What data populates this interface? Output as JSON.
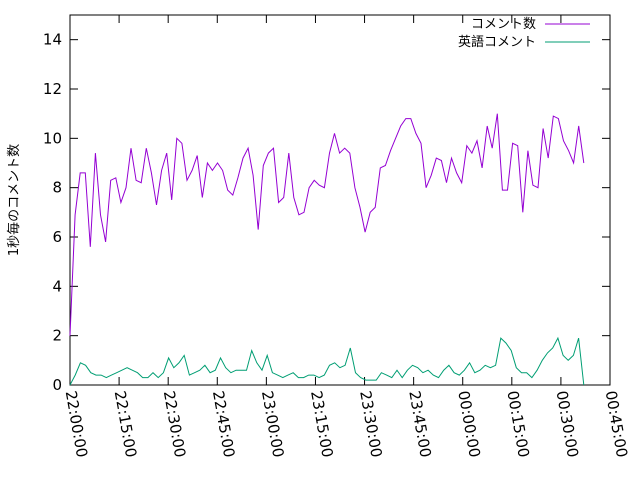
{
  "chart_data": {
    "type": "line",
    "title": "",
    "xlabel": "",
    "ylabel": "1秒毎のコメント数",
    "xlim": [
      "22:00:00",
      "00:45:00"
    ],
    "ylim": [
      0,
      15
    ],
    "x_ticks": [
      "22:00:00",
      "22:15:00",
      "22:30:00",
      "22:45:00",
      "23:00:00",
      "23:15:00",
      "23:30:00",
      "23:45:00",
      "00:00:00",
      "00:15:00",
      "00:30:00",
      "00:45:00"
    ],
    "y_ticks": [
      "0",
      "2",
      "4",
      "6",
      "8",
      "10",
      "12",
      "14"
    ],
    "grid": false,
    "legend_position": "top-right",
    "series": [
      {
        "name": "コメント数",
        "color": "#9400d3",
        "values": [
          2.0,
          6.9,
          8.6,
          8.6,
          5.6,
          9.4,
          6.9,
          5.8,
          8.3,
          8.4,
          7.4,
          8.0,
          9.6,
          8.3,
          8.2,
          9.6,
          8.6,
          7.3,
          8.7,
          9.4,
          7.5,
          10.0,
          9.8,
          8.3,
          8.7,
          9.3,
          7.6,
          9.0,
          8.7,
          9.0,
          8.7,
          7.9,
          7.7,
          8.4,
          9.2,
          9.6,
          8.5,
          6.3,
          8.9,
          9.4,
          9.6,
          7.4,
          7.6,
          9.4,
          7.6,
          6.9,
          7.0,
          8.0,
          8.3,
          8.1,
          8.0,
          9.4,
          10.2,
          9.4,
          9.6,
          9.4,
          8.0,
          7.2,
          6.2,
          7.0,
          7.2,
          8.8,
          8.9,
          9.5,
          10.0,
          10.5,
          10.8,
          10.8,
          10.2,
          9.8,
          8.0,
          8.5,
          9.2,
          9.1,
          8.2,
          9.2,
          8.6,
          8.2,
          9.7,
          9.4,
          9.9,
          8.8,
          10.5,
          9.6,
          11.0,
          7.9,
          7.9,
          9.8,
          9.7,
          7.0,
          9.5,
          8.1,
          8.0,
          10.4,
          9.2,
          10.9,
          10.8,
          9.9,
          9.5,
          9.0,
          10.5,
          9.0
        ]
      },
      {
        "name": "英語コメント",
        "color": "#009e73",
        "values": [
          0.0,
          0.4,
          0.9,
          0.8,
          0.5,
          0.4,
          0.4,
          0.3,
          0.4,
          0.5,
          0.6,
          0.7,
          0.6,
          0.5,
          0.3,
          0.3,
          0.5,
          0.3,
          0.5,
          1.1,
          0.7,
          0.9,
          1.2,
          0.4,
          0.5,
          0.6,
          0.8,
          0.5,
          0.6,
          1.1,
          0.7,
          0.5,
          0.6,
          0.6,
          0.6,
          1.4,
          0.9,
          0.6,
          1.2,
          0.5,
          0.4,
          0.3,
          0.4,
          0.5,
          0.3,
          0.3,
          0.4,
          0.4,
          0.3,
          0.4,
          0.8,
          0.9,
          0.7,
          0.8,
          1.5,
          0.5,
          0.3,
          0.2,
          0.2,
          0.2,
          0.5,
          0.4,
          0.3,
          0.6,
          0.3,
          0.6,
          0.8,
          0.7,
          0.5,
          0.6,
          0.4,
          0.3,
          0.6,
          0.8,
          0.5,
          0.4,
          0.6,
          0.9,
          0.5,
          0.6,
          0.8,
          0.7,
          0.8,
          1.9,
          1.7,
          1.4,
          0.7,
          0.5,
          0.5,
          0.3,
          0.6,
          1.0,
          1.3,
          1.5,
          1.9,
          1.2,
          1.0,
          1.2,
          1.9,
          0.0
        ]
      }
    ]
  }
}
